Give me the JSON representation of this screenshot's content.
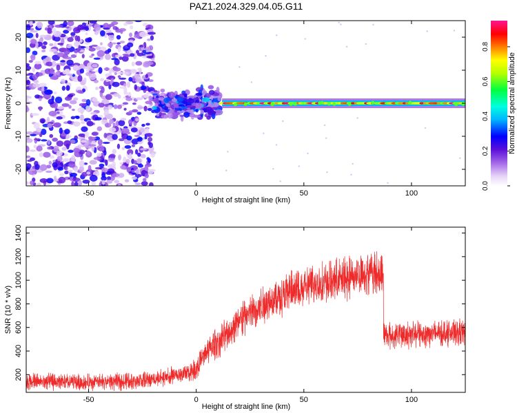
{
  "title": "PAZ1.2024.329.04.05.G11",
  "chart_data": [
    {
      "type": "heatmap",
      "title": "PAZ1.2024.329.04.05.G11",
      "xlabel": "Height of straight line (km)",
      "ylabel": "Frequency (Hz)",
      "xlim": [
        -79,
        125
      ],
      "ylim": [
        -25,
        25
      ],
      "xticks": [
        -50,
        0,
        50,
        100
      ],
      "yticks": [
        -20,
        -10,
        0,
        10,
        20
      ],
      "colorbar": {
        "label": "Normalized spectral amplitude",
        "range": [
          0,
          0.95
        ],
        "ticks": [
          0.0,
          0.2,
          0.4,
          0.6,
          0.8
        ]
      },
      "regions": [
        {
          "x_range": [
            -79,
            -20
          ],
          "freq_range": [
            -25,
            25
          ],
          "amplitude_range": [
            0.05,
            0.3
          ],
          "pattern": "scattered noise"
        },
        {
          "x_range": [
            -20,
            11
          ],
          "freq_range": [
            -6,
            6
          ],
          "amplitude_range": [
            0.1,
            0.35
          ],
          "pattern": "clustered near 0 Hz"
        },
        {
          "x_range": [
            12,
            125
          ],
          "freq_range": [
            -1,
            1
          ],
          "amplitude_range": [
            0.6,
            0.95
          ],
          "pattern": "narrow band at 0 Hz"
        }
      ]
    },
    {
      "type": "line",
      "xlabel": "Height of straight line (km)",
      "ylabel": "SNR (10 * v/v)",
      "xlim": [
        -79,
        125
      ],
      "ylim": [
        50,
        1450
      ],
      "xticks": [
        -50,
        0,
        50,
        100
      ],
      "yticks": [
        200,
        400,
        600,
        800,
        1000,
        1200,
        1400
      ],
      "color": "#ee2a2a",
      "series": [
        {
          "x": [
            -79,
            -70,
            -60,
            -50,
            -40,
            -30,
            -20,
            -10,
            -5,
            0,
            5,
            10,
            15,
            20,
            30,
            40,
            50,
            60,
            70,
            80,
            86,
            88,
            90,
            100,
            110,
            125
          ],
          "mean": [
            140,
            140,
            135,
            135,
            140,
            145,
            160,
            190,
            210,
            250,
            400,
            470,
            560,
            660,
            780,
            880,
            940,
            980,
            1020,
            1070,
            1060,
            540,
            530,
            540,
            550,
            560
          ],
          "noise_amplitude": [
            70,
            70,
            70,
            70,
            70,
            70,
            70,
            80,
            80,
            90,
            110,
            130,
            140,
            150,
            160,
            170,
            170,
            170,
            180,
            180,
            180,
            110,
            110,
            110,
            110,
            110
          ]
        }
      ]
    }
  ]
}
